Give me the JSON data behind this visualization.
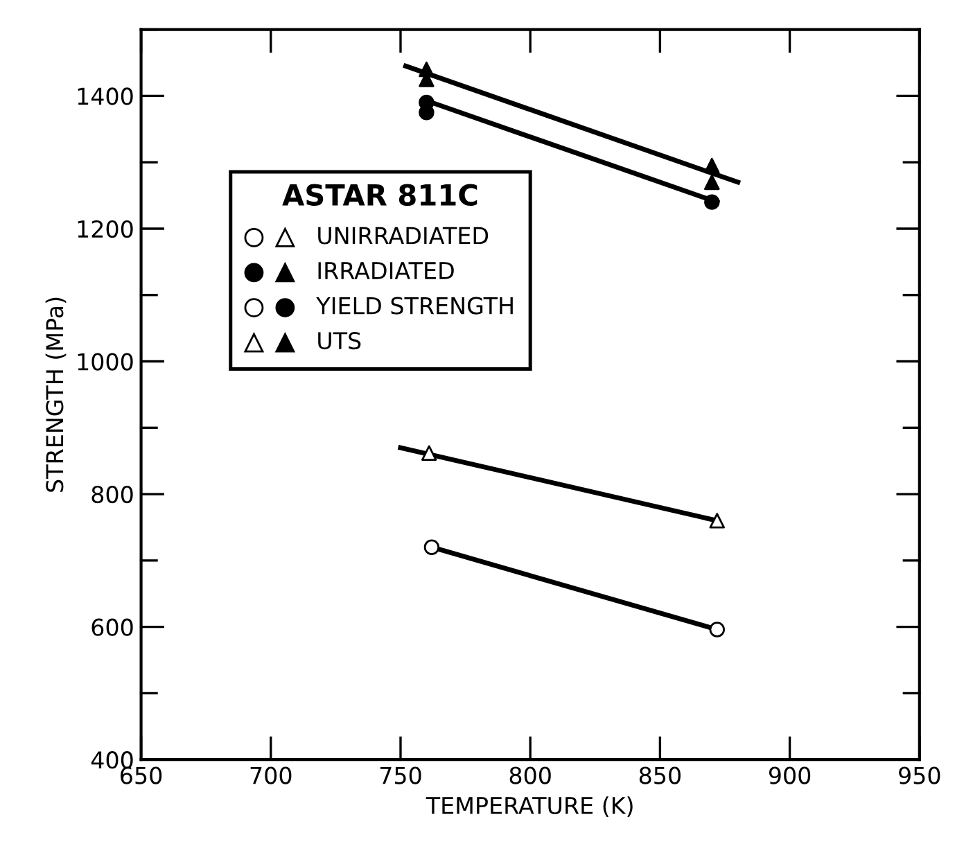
{
  "chart_data": {
    "type": "scatter",
    "xlabel": "TEMPERATURE (K)",
    "ylabel": "STRENGTH (MPa)",
    "legend_title": "ASTAR 811C",
    "annotations": [
      "UNIRRADIATED",
      "IRRADIATED",
      "YIELD STRENGTH",
      "UTS"
    ],
    "xlim": [
      650,
      950
    ],
    "ylim": [
      400,
      1500
    ],
    "xticks": [
      650,
      700,
      750,
      800,
      850,
      900,
      950
    ],
    "yticks": [
      400,
      {
        "value": 500,
        "label": null
      },
      600,
      {
        "value": 700,
        "label": null
      },
      800,
      {
        "value": 900,
        "label": null
      },
      1000,
      {
        "value": 1100,
        "label": null
      },
      1200,
      {
        "value": 1300,
        "label": null
      },
      1400,
      {
        "value": 1500,
        "label": null
      }
    ],
    "grid": false,
    "series": [
      {
        "marker": "circle",
        "color": "#ffffff",
        "x": [
          762,
          872
        ],
        "values": [
          720,
          596
        ]
      },
      {
        "marker": "triangle",
        "color": "#ffffff",
        "x": [
          761,
          872
        ],
        "values": [
          862,
          760
        ]
      },
      {
        "marker": "circle",
        "color": "#000000",
        "x": [
          760,
          760,
          870
        ],
        "values": [
          1390,
          1375,
          1240
        ]
      },
      {
        "marker": "triangle",
        "color": "#000000",
        "x": [
          760,
          760,
          870,
          870
        ],
        "values": [
          1440,
          1425,
          1295,
          1270
        ]
      },
      {
        "type": "line",
        "marker": "none",
        "color": "#000000",
        "x": [
          762,
          872
        ],
        "values": [
          720,
          596
        ]
      },
      {
        "type": "line",
        "marker": "none",
        "color": "#000000",
        "x": [
          750,
          872
        ],
        "values": [
          870,
          760
        ]
      },
      {
        "type": "line",
        "marker": "none",
        "color": "#000000",
        "x": [
          762,
          872
        ],
        "values": [
          1390,
          1240
        ]
      },
      {
        "type": "line",
        "marker": "none",
        "color": "#000000",
        "x": [
          752,
          880
        ],
        "values": [
          1445,
          1270
        ]
      }
    ]
  }
}
